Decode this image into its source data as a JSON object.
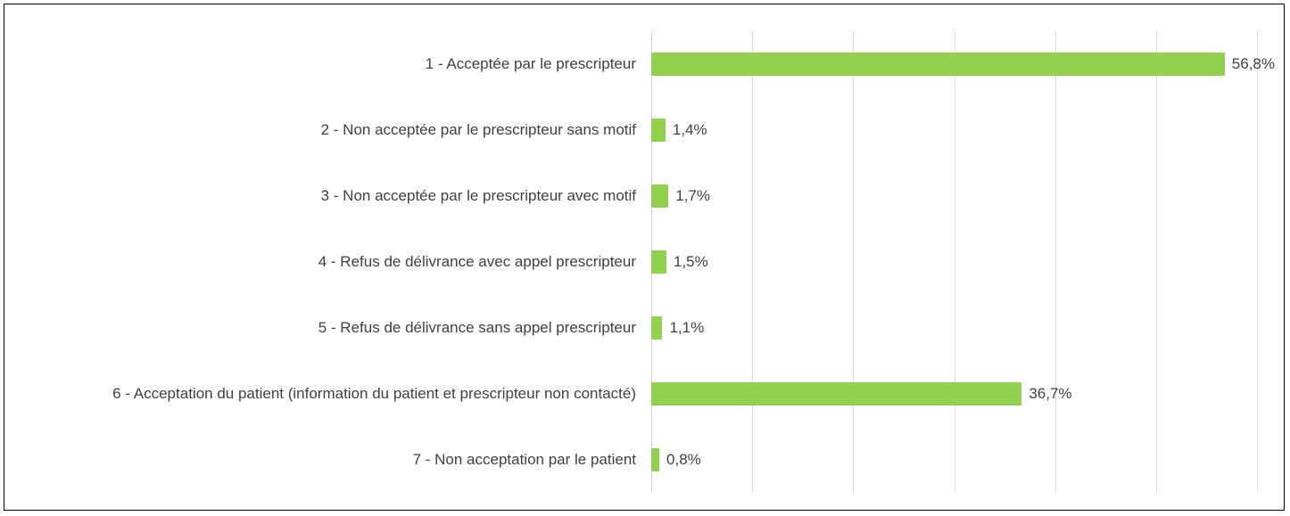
{
  "chart_data": {
    "type": "hbar",
    "categories": [
      "1 - Acceptée par le prescripteur",
      "2 - Non acceptée par le prescripteur sans motif",
      "3 - Non acceptée par le prescripteur avec motif",
      "4 - Refus de délivrance avec appel prescripteur",
      "5 - Refus de délivrance sans appel prescripteur",
      "6 - Acceptation du patient (information du patient et prescripteur non contacté)",
      "7 - Non acceptation par le patient"
    ],
    "values": [
      56.8,
      1.4,
      1.7,
      1.5,
      1.1,
      36.7,
      0.8
    ],
    "value_labels": [
      "56,8%",
      "1,4%",
      "1,7%",
      "1,5%",
      "1,1%",
      "36,7%",
      "0,8%"
    ],
    "color": "#92d050",
    "xlim": [
      0,
      60
    ],
    "xticks": [
      0,
      10,
      20,
      30,
      40,
      50,
      60
    ],
    "grid": true
  }
}
